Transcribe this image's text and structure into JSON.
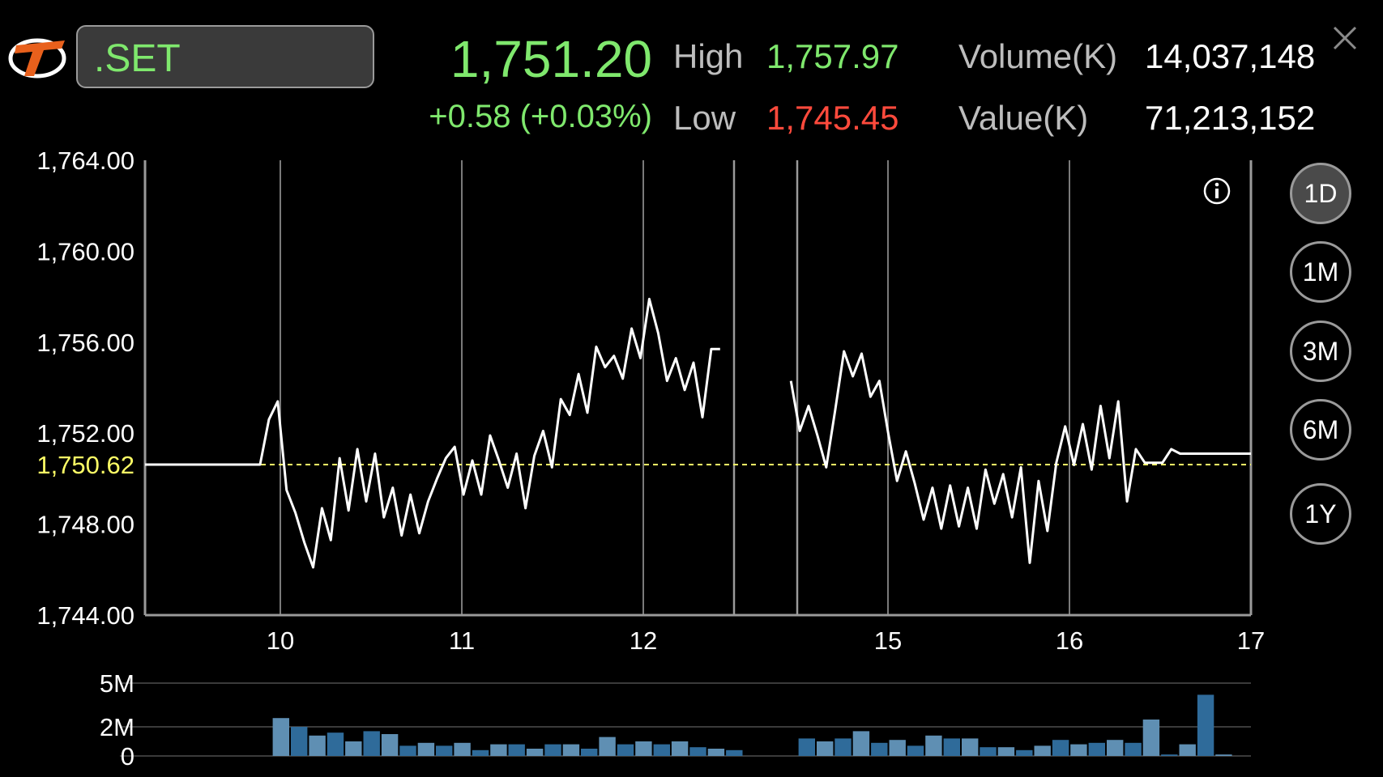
{
  "header": {
    "symbol": ".SET",
    "last": "1,751.20",
    "change": "+0.58 (+0.03%)",
    "high_label": "High",
    "high_value": "1,757.97",
    "low_label": "Low",
    "low_value": "1,745.45",
    "volume_label": "Volume(K)",
    "volume_value": "14,037,148",
    "value_label": "Value(K)",
    "value_value": "71,213,152"
  },
  "periods": [
    {
      "label": "1D",
      "active": true
    },
    {
      "label": "1M",
      "active": false
    },
    {
      "label": "3M",
      "active": false
    },
    {
      "label": "6M",
      "active": false
    },
    {
      "label": "1Y",
      "active": false
    }
  ],
  "icons": {
    "logo": "brand-logo",
    "close": "close-icon",
    "info": "info-icon"
  },
  "colors": {
    "up": "#7fe86d",
    "down": "#ff4a3c",
    "reference": "#ffff66",
    "volume": "#2f6b9a"
  },
  "chart_data": [
    {
      "type": "line",
      "ylim": [
        1744,
        1764
      ],
      "yticks": [
        "1,764.00",
        "1,760.00",
        "1,756.00",
        "1,752.00",
        "1,748.00",
        "1,744.00"
      ],
      "ytick_values": [
        1764,
        1760,
        1756,
        1752,
        1748,
        1744
      ],
      "xticks": [
        "10",
        "11",
        "12",
        "15",
        "16",
        "17"
      ],
      "reference_value": 1750.62,
      "reference_label": "1,750.62",
      "grid": "vertical at hour ticks",
      "series": [
        {
          "values": [
            1750.62,
            1750.62,
            1750.62,
            1750.62,
            1750.62,
            1750.62,
            1750.62,
            1750.62,
            1750.62,
            1750.62,
            1750.62,
            1750.62,
            1750.62,
            1750.62,
            1752.6,
            1753.4,
            1749.5,
            1748.5,
            1747.2,
            1746.1,
            1748.7,
            1747.3,
            1750.9,
            1748.6,
            1751.3,
            1749.0,
            1751.1,
            1748.3,
            1749.6,
            1747.5,
            1749.3,
            1747.6,
            1749.0,
            1750.0,
            1750.9,
            1751.4,
            1749.3,
            1750.8,
            1749.3,
            1751.9,
            1750.8,
            1749.6,
            1751.1,
            1748.7,
            1751.0,
            1752.1,
            1750.5,
            1753.5,
            1752.8,
            1754.6,
            1752.9,
            1755.8,
            1754.9,
            1755.4,
            1754.4,
            1756.6,
            1755.3,
            1757.9,
            1756.4,
            1754.3,
            1755.3,
            1753.9,
            1755.1,
            1752.7,
            1755.7,
            1755.7,
            null,
            null,
            null,
            null,
            null,
            null,
            null,
            1754.3,
            1752.1,
            1753.2,
            1751.9,
            1750.5,
            1753.0,
            1755.6,
            1754.5,
            1755.5,
            1753.6,
            1754.3,
            1752.0,
            1749.9,
            1751.2,
            1749.8,
            1748.2,
            1749.6,
            1747.8,
            1749.7,
            1747.9,
            1749.6,
            1747.8,
            1750.4,
            1748.9,
            1750.2,
            1748.3,
            1750.5,
            1746.3,
            1749.9,
            1747.7,
            1750.7,
            1752.3,
            1750.6,
            1752.4,
            1750.4,
            1753.2,
            1750.9,
            1753.4,
            1749.0,
            1751.3,
            1750.7,
            1750.7,
            1750.7,
            1751.3,
            1751.1,
            1751.1,
            1751.1,
            1751.1,
            1751.1,
            1751.1,
            1751.1,
            1751.1,
            1751.1
          ]
        }
      ]
    },
    {
      "type": "bar",
      "ylim": [
        0,
        5
      ],
      "yticks": [
        "5M",
        "2M",
        "0"
      ],
      "ytick_values": [
        5,
        2,
        0
      ],
      "unit": "M",
      "values": [
        0,
        0,
        0,
        0,
        0,
        0,
        0,
        2.6,
        2.0,
        1.4,
        1.6,
        1.0,
        1.7,
        1.5,
        0.7,
        0.9,
        0.7,
        0.9,
        0.4,
        0.8,
        0.8,
        0.5,
        0.8,
        0.8,
        0.5,
        1.3,
        0.8,
        1.0,
        0.8,
        1.0,
        0.6,
        0.5,
        0.4,
        0,
        0,
        0,
        1.2,
        1.0,
        1.2,
        1.7,
        0.9,
        1.1,
        0.7,
        1.4,
        1.2,
        1.2,
        0.6,
        0.6,
        0.4,
        0.7,
        1.1,
        0.8,
        0.9,
        1.1,
        0.9,
        2.5,
        0.1,
        0.8,
        4.2,
        0.1,
        0
      ]
    }
  ]
}
